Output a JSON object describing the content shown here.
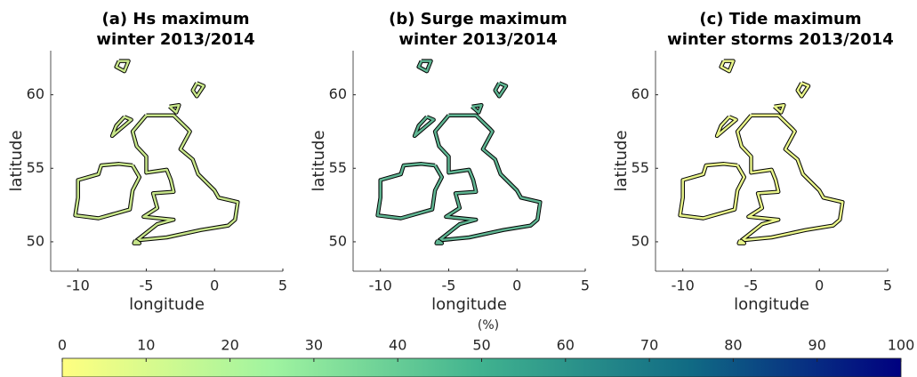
{
  "chart_data": [
    {
      "type": "map",
      "title": [
        "(a) Hs maximum",
        "winter 2013/2014"
      ],
      "x_label": "longitude",
      "y_label": "latitude",
      "xlim": [
        -12,
        5
      ],
      "ylim": [
        48,
        63
      ],
      "xticks": [
        -10,
        -5,
        0,
        5
      ],
      "yticks": [
        50,
        55,
        60
      ]
    },
    {
      "type": "map",
      "title": [
        "(b) Surge maximum",
        "winter 2013/2014"
      ],
      "x_label": "longitude",
      "y_label": "latitude",
      "xlim": [
        -12,
        5
      ],
      "ylim": [
        48,
        63
      ],
      "xticks": [
        -10,
        -5,
        0,
        5
      ],
      "yticks": [
        50,
        55,
        60
      ]
    },
    {
      "type": "map",
      "title": [
        "(c) Tide maximum",
        "winter storms 2013/2014"
      ],
      "x_label": "longitude",
      "y_label": "latitude",
      "xlim": [
        -12,
        5
      ],
      "ylim": [
        48,
        63
      ],
      "xticks": [
        -10,
        -5,
        0,
        5
      ],
      "yticks": [
        50,
        55,
        60
      ]
    }
  ],
  "colorbar": {
    "label": "(%)",
    "lim": [
      0,
      100
    ],
    "ticks": [
      0,
      10,
      20,
      30,
      40,
      50,
      60,
      70,
      80,
      90,
      100
    ],
    "colors": [
      "#ffff80",
      "#a0f4a0",
      "#40b28f",
      "#106a84",
      "#000080"
    ]
  }
}
